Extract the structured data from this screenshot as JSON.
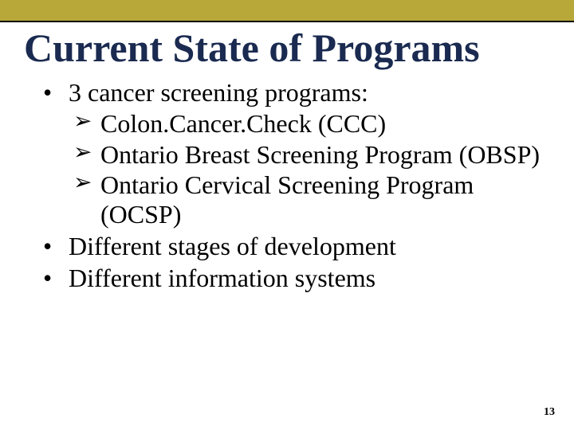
{
  "accent_bar_color": "#b8a83a",
  "rule_color": "#000000",
  "title": {
    "text": "Current State of Programs",
    "color": "#1a2a50"
  },
  "body_text_color": "#000000",
  "bullets": [
    {
      "text": "3 cancer screening programs:",
      "sub": [
        "Colon.Cancer.Check (CCC)",
        "Ontario Breast Screening Program (OBSP)",
        "Ontario Cervical Screening Program (OCSP)"
      ]
    },
    {
      "text": "Different stages of development",
      "sub": []
    },
    {
      "text": "Different information systems",
      "sub": []
    }
  ],
  "page_number": "13",
  "background_color": "#ffffff"
}
